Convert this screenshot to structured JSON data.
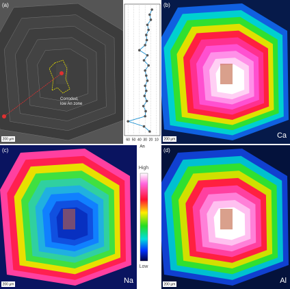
{
  "panel_a": {
    "label": "(a)",
    "annotation": [
      "Corroded,",
      "low An zone"
    ],
    "scale": "200 µm"
  },
  "profile": {
    "x_label": "An",
    "xlim": [
      65,
      5
    ],
    "xticks": [
      60,
      50,
      40,
      30,
      20,
      10
    ],
    "values": [
      18,
      22,
      20,
      26,
      24,
      28,
      27,
      30,
      40,
      26,
      32,
      24,
      30,
      28,
      26,
      30,
      28,
      31,
      27,
      33,
      29,
      30,
      60,
      32,
      22
    ]
  },
  "panel_b": {
    "label": "(b)",
    "element": "Ca",
    "scale": "200 µm"
  },
  "panel_c": {
    "label": "(c)",
    "element": "Na",
    "scale": "200 µm"
  },
  "panel_d": {
    "label": "(d)",
    "element": "Al",
    "scale": "200 µm"
  },
  "colorbar": {
    "high": "High",
    "low": "Low"
  }
}
